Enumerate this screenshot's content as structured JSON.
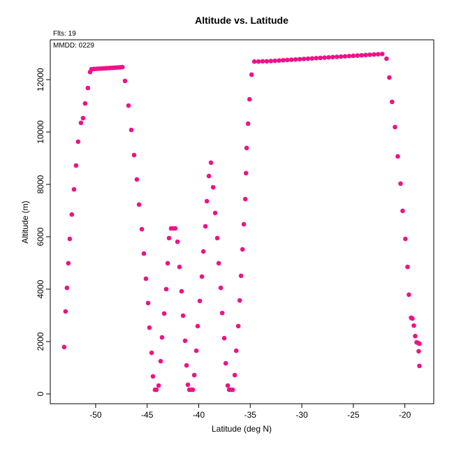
{
  "chart_data": {
    "type": "scatter",
    "title": "Altitude vs. Latitude",
    "subtitle": "Flts: 19",
    "annotation": "MMDD: 0229",
    "x_label": "Latitude (deg N)",
    "y_label": "Altitude (m)",
    "color": "#ee1289",
    "xlim": [
      -54.4,
      -17.2
    ],
    "ylim": [
      -373,
      13520
    ],
    "xticks": [
      -50,
      -45,
      -40,
      -35,
      -30,
      -25,
      -20
    ],
    "yticks": [
      0,
      2000,
      4000,
      6000,
      8000,
      10000,
      12000
    ],
    "x": [
      -53.05,
      -52.92,
      -52.78,
      -52.65,
      -52.51,
      -52.31,
      -52.1,
      -51.9,
      -51.7,
      -51.42,
      -51.22,
      -51.02,
      -50.75,
      -50.54,
      -50.4,
      -50.2,
      -50.0,
      -49.8,
      -49.6,
      -49.4,
      -49.2,
      -49.0,
      -48.8,
      -48.6,
      -48.4,
      -48.2,
      -48.0,
      -47.8,
      -47.6,
      -47.4,
      -47.15,
      -46.81,
      -46.54,
      -46.27,
      -46.0,
      -45.79,
      -45.52,
      -45.32,
      -45.12,
      -44.91,
      -44.78,
      -44.57,
      -44.44,
      -44.24,
      -44.1,
      -43.89,
      -43.69,
      -43.56,
      -43.35,
      -43.15,
      -43.01,
      -42.88,
      -42.68,
      -42.47,
      -42.27,
      -42.06,
      -41.86,
      -41.66,
      -41.52,
      -41.32,
      -41.18,
      -41.05,
      -40.91,
      -40.71,
      -40.57,
      -40.43,
      -40.23,
      -40.1,
      -39.89,
      -39.69,
      -39.55,
      -39.35,
      -39.21,
      -39.01,
      -38.81,
      -38.6,
      -38.4,
      -38.2,
      -38.06,
      -37.86,
      -37.72,
      -37.52,
      -37.38,
      -37.18,
      -37.04,
      -36.84,
      -36.7,
      -36.5,
      -36.36,
      -36.16,
      -36.02,
      -35.89,
      -35.75,
      -35.62,
      -35.48,
      -35.41,
      -35.35,
      -35.21,
      -35.07,
      -34.87,
      -34.6,
      -34.2,
      -33.8,
      -33.4,
      -33.0,
      -32.6,
      -32.2,
      -31.8,
      -31.4,
      -31.0,
      -30.6,
      -30.2,
      -29.8,
      -29.4,
      -29.0,
      -28.6,
      -28.2,
      -27.8,
      -27.4,
      -27.0,
      -26.6,
      -26.2,
      -25.8,
      -25.4,
      -25.0,
      -24.6,
      -24.2,
      -23.8,
      -23.4,
      -23.0,
      -22.6,
      -22.2,
      -21.78,
      -21.51,
      -21.24,
      -20.96,
      -20.69,
      -20.42,
      -20.22,
      -19.95,
      -19.74,
      -19.61,
      -19.4,
      -19.27,
      -19.13,
      -19.0,
      -18.86,
      -18.72,
      -18.66,
      -18.59,
      -18.59
    ],
    "y": [
      1790,
      3150,
      4050,
      4990,
      5920,
      6850,
      7810,
      8720,
      9630,
      10350,
      10530,
      11090,
      11680,
      12290,
      12400,
      12405,
      12410,
      12415,
      12420,
      12425,
      12430,
      12435,
      12440,
      12445,
      12450,
      12455,
      12460,
      12465,
      12470,
      12480,
      11950,
      11010,
      10080,
      9120,
      8190,
      7230,
      6290,
      5360,
      4400,
      3470,
      2530,
      1570,
      670,
      160,
      160,
      320,
      1250,
      2160,
      3070,
      4000,
      4990,
      5950,
      6320,
      6320,
      6320,
      5810,
      4850,
      3920,
      2990,
      2030,
      1090,
      350,
      160,
      160,
      160,
      720,
      1650,
      2590,
      3550,
      4480,
      5440,
      6400,
      7360,
      8320,
      8830,
      7890,
      6910,
      5950,
      4990,
      4050,
      3090,
      2130,
      1170,
      320,
      160,
      160,
      160,
      720,
      1650,
      2590,
      3570,
      4510,
      5520,
      6480,
      7440,
      8430,
      9390,
      10320,
      11250,
      12190,
      12690,
      12690,
      12700,
      12700,
      12710,
      12720,
      12730,
      12740,
      12750,
      12760,
      12770,
      12780,
      12790,
      12800,
      12810,
      12820,
      12830,
      12840,
      12850,
      12860,
      12870,
      12880,
      12890,
      12900,
      12910,
      12920,
      12930,
      12940,
      12950,
      12960,
      12970,
      12980,
      12800,
      12080,
      11150,
      10190,
      9070,
      8030,
      6990,
      5920,
      4850,
      3790,
      2910,
      2880,
      2610,
      2210,
      1970,
      1950,
      1630,
      1920,
      1070
    ]
  }
}
